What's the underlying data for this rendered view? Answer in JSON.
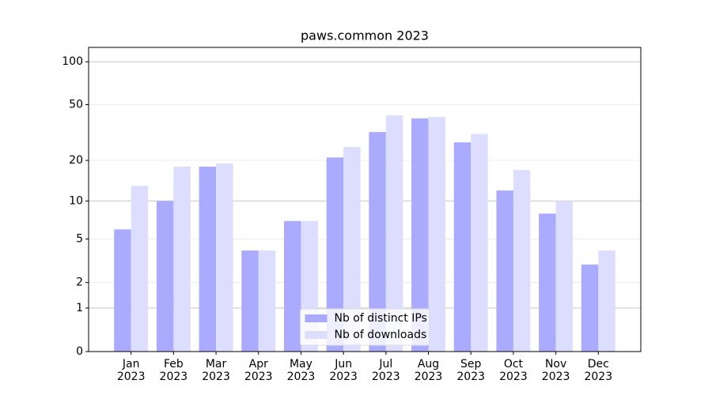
{
  "chart_data": {
    "type": "bar",
    "title": "paws.common 2023",
    "categories": [
      "Jan\n2023",
      "Feb\n2023",
      "Mar\n2023",
      "Apr\n2023",
      "May\n2023",
      "Jun\n2023",
      "Jul\n2023",
      "Aug\n2023",
      "Sep\n2023",
      "Oct\n2023",
      "Nov\n2023",
      "Dec\n2023"
    ],
    "series": [
      {
        "name": "Nb of distinct IPs",
        "color": "#aaaaff",
        "values": [
          6,
          10,
          18,
          4,
          7,
          21,
          32,
          40,
          27,
          12,
          8,
          3
        ]
      },
      {
        "name": "Nb of downloads",
        "color": "#ddddff",
        "values": [
          13,
          18,
          19,
          4,
          7,
          25,
          42,
          41,
          31,
          17,
          10,
          4
        ]
      }
    ],
    "yscale": "log1p",
    "ylim": [
      0,
      126
    ],
    "yticks": [
      0,
      1,
      2,
      5,
      10,
      20,
      50,
      100
    ],
    "grid": true,
    "legend": "lower center"
  }
}
